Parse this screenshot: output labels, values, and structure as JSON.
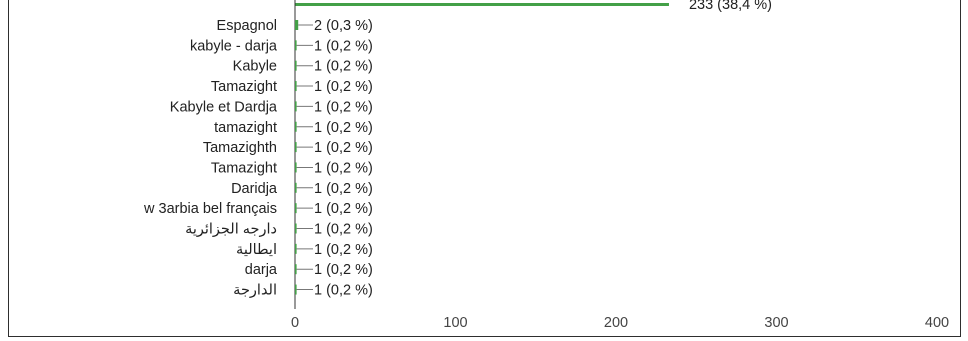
{
  "chart_data": {
    "type": "bar",
    "orientation": "horizontal",
    "categories": [
      "Espagnol",
      "kabyle - darja",
      "Kabyle",
      "Tamazight",
      "Kabyle et Dardja",
      "tamazight",
      "Tamazighth",
      "Tamazight",
      "Daridja",
      "w 3arbia bel français",
      "دارجه الجزائرية",
      "ايطالية",
      "darja",
      "الدارجة"
    ],
    "values": [
      2,
      1,
      1,
      1,
      1,
      1,
      1,
      1,
      1,
      1,
      1,
      1,
      1,
      1
    ],
    "value_labels": [
      "2 (0,3 %)",
      "1 (0,2 %)",
      "1 (0,2 %)",
      "1 (0,2 %)",
      "1 (0,2 %)",
      "1 (0,2 %)",
      "1 (0,2 %)",
      "1 (0,2 %)",
      "1 (0,2 %)",
      "1 (0,2 %)",
      "1 (0,2 %)",
      "1 (0,2 %)",
      "1 (0,2 %)",
      "1 (0,2 %)"
    ],
    "partial_top_bar": {
      "value": 233,
      "label": "233 (38,4 %)"
    },
    "xlim": [
      0,
      400
    ],
    "xticks": [
      "0",
      "100",
      "200",
      "300",
      "400"
    ],
    "title": "",
    "xlabel": "",
    "ylabel": "",
    "grid": false,
    "colors": {
      "bar": "#43a047",
      "stem": "#777777",
      "axis": "#333333"
    }
  }
}
